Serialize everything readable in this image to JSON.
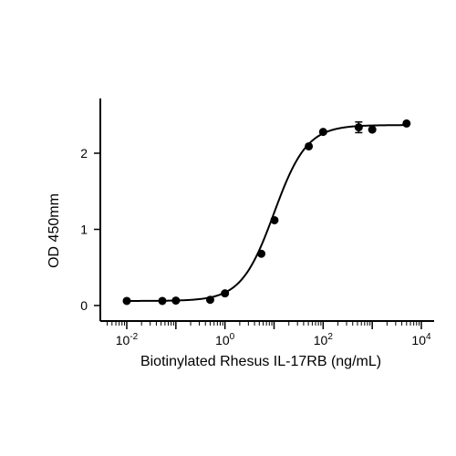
{
  "chart_data": {
    "type": "scatter",
    "title": "",
    "xlabel": "Biotinylated Rhesus IL-17RB (ng/mL)",
    "ylabel": "OD 450mm",
    "x_scale": "log",
    "xlim": [
      0.005,
      15000
    ],
    "ylim": [
      0,
      2.7
    ],
    "grid": false,
    "legend": "none",
    "x_ticks": [
      {
        "value": 0.01,
        "base": "10",
        "exp": "-2"
      },
      {
        "value": 1,
        "base": "10",
        "exp": "0"
      },
      {
        "value": 100,
        "base": "10",
        "exp": "2"
      },
      {
        "value": 10000,
        "base": "10",
        "exp": "4"
      }
    ],
    "y_ticks": [
      {
        "value": 0,
        "label": "0"
      },
      {
        "value": 1,
        "label": "1"
      },
      {
        "value": 2,
        "label": "2"
      }
    ],
    "series": [
      {
        "points": [
          {
            "x": 0.01,
            "y": 0.06
          },
          {
            "x": 0.053,
            "y": 0.06
          },
          {
            "x": 0.1,
            "y": 0.065
          },
          {
            "x": 0.5,
            "y": 0.075
          },
          {
            "x": 1.0,
            "y": 0.16
          },
          {
            "x": 5.5,
            "y": 0.68
          },
          {
            "x": 10.2,
            "y": 1.12
          },
          {
            "x": 51,
            "y": 2.09
          },
          {
            "x": 100,
            "y": 2.28
          },
          {
            "x": 530,
            "y": 2.34,
            "err": 0.07
          },
          {
            "x": 1000,
            "y": 2.31
          },
          {
            "x": 5000,
            "y": 2.39
          }
        ],
        "fit": {
          "model": "4PL",
          "bottom": 0.06,
          "top": 2.37,
          "ec50": 10,
          "hill": 1.3
        }
      }
    ],
    "colors": {
      "points": "#000000",
      "curve": "#000000",
      "axes": "#000000"
    }
  }
}
